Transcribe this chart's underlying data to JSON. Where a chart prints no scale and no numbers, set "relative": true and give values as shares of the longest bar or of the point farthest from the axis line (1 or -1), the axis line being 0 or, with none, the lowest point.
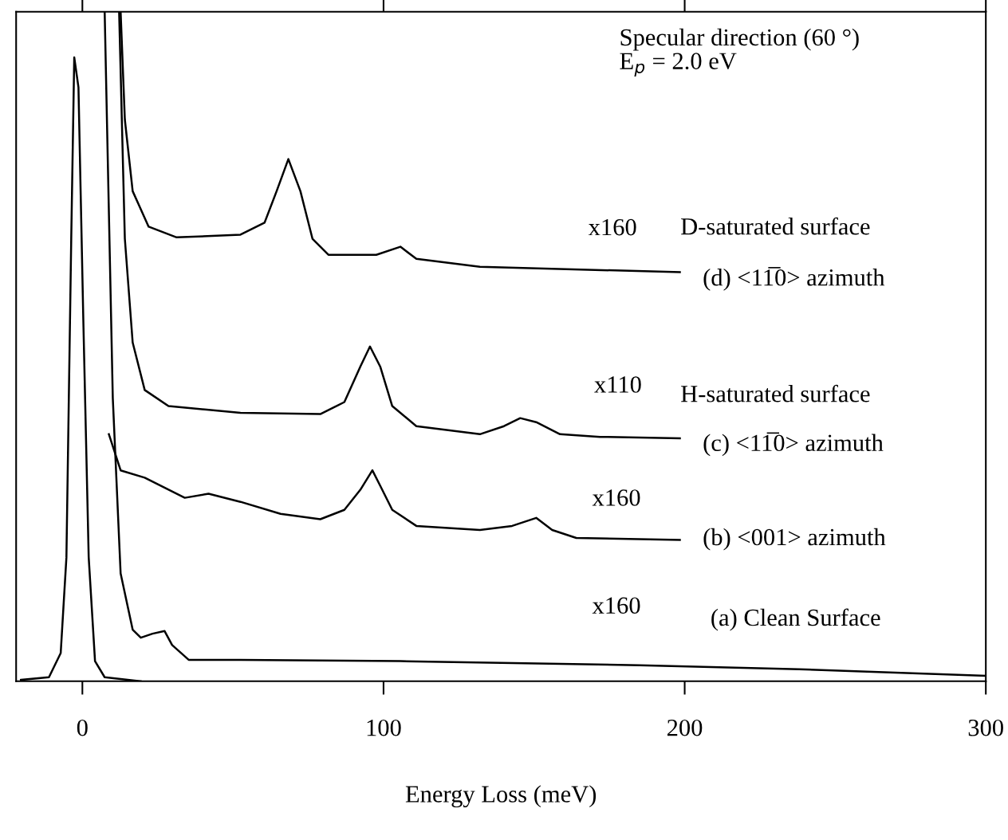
{
  "chart_data": {
    "type": "line",
    "relative": true,
    "xlabel": "Energy Loss (meV)",
    "xlim": [
      -22,
      300
    ],
    "xticks": [
      0,
      100,
      200,
      300
    ],
    "tick_labels": "x",
    "marker": "none",
    "line_style": "solid",
    "series": [
      {
        "color": "#000000",
        "x": [
          -20.4,
          -11.1,
          -7.2,
          -5.3,
          -3.7,
          -2.7,
          -1.3,
          0.3,
          2.1,
          4.2,
          7.4,
          19.4
        ],
        "values": [
          0.002,
          0.006,
          0.042,
          0.185,
          0.661,
          0.932,
          0.887,
          0.542,
          0.185,
          0.03,
          0.006,
          0
        ]
      },
      {
        "color": "#000000",
        "x": [
          7.4,
          10.1,
          12.7,
          16.7,
          19.4,
          23.3,
          27.3,
          29.8,
          35.3,
          52.5,
          105.6,
          185,
          238,
          300
        ],
        "values": [
          1,
          0.423,
          0.161,
          0.077,
          0.065,
          0.071,
          0.075,
          0.054,
          0.032,
          0.032,
          0.03,
          0.024,
          0.018,
          0.008
        ]
      },
      {
        "color": "#000000",
        "x": [
          8.8,
          12.7,
          20.7,
          34,
          41.9,
          52.5,
          65.8,
          79,
          87,
          92.3,
          96.3,
          98.9,
          102.9,
          110.9,
          132,
          142.7,
          150.7,
          156,
          164,
          198.4
        ],
        "values": [
          0.369,
          0.315,
          0.304,
          0.274,
          0.28,
          0.268,
          0.25,
          0.242,
          0.256,
          0.286,
          0.315,
          0.292,
          0.256,
          0.232,
          0.226,
          0.232,
          0.244,
          0.226,
          0.214,
          0.211
        ]
      },
      {
        "color": "#000000",
        "x": [
          12.2,
          14.1,
          16.7,
          20.7,
          28.6,
          52.5,
          79,
          87,
          92.3,
          95.5,
          98.9,
          102.9,
          110.9,
          132,
          140,
          145.4,
          150.7,
          158.6,
          171.9,
          198.4
        ],
        "values": [
          1,
          0.661,
          0.506,
          0.435,
          0.411,
          0.401,
          0.399,
          0.417,
          0.47,
          0.5,
          0.47,
          0.411,
          0.381,
          0.369,
          0.381,
          0.393,
          0.387,
          0.369,
          0.365,
          0.363
        ]
      },
      {
        "color": "#000000",
        "x": [
          12.7,
          14.1,
          16.7,
          22,
          31.3,
          52.5,
          60.5,
          64.5,
          68.4,
          72.4,
          76.4,
          81.7,
          97.6,
          105.6,
          110.9,
          132,
          198.4
        ],
        "values": [
          1,
          0.839,
          0.732,
          0.679,
          0.663,
          0.667,
          0.685,
          0.732,
          0.78,
          0.732,
          0.661,
          0.637,
          0.637,
          0.649,
          0.631,
          0.619,
          0.611
        ]
      }
    ],
    "annotations": [
      "Specular direction (60 °)\nE$_{p}$ = 2.0 eV",
      "x160",
      "D-saturated surface",
      "(d) <11̅0> azimuth",
      "x110",
      "H-saturated surface",
      "(c) <11̅0> azimuth",
      "x160",
      "(b) <001> azimuth",
      "x160",
      "(a) Clean Surface"
    ]
  }
}
